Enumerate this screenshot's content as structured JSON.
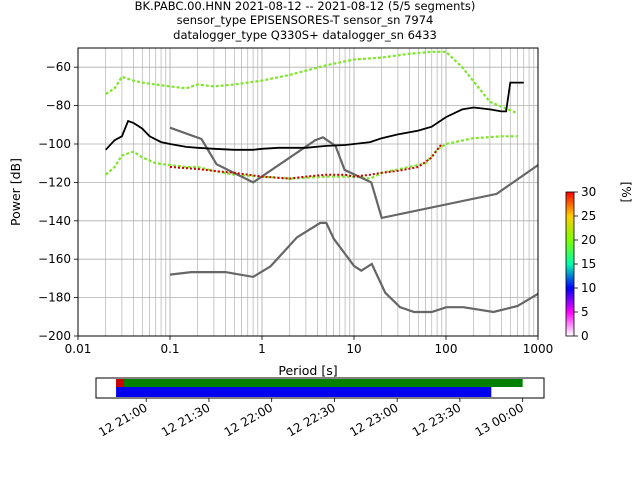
{
  "title": {
    "line1": "BK.PABC.00.HNN   2021-08-12 -- 2021-08-12  (5/5 segments)",
    "line2": "sensor_type EPISENSORES-T sensor_sn 7974",
    "line3": "datalogger_type Q330S+ datalogger_sn 6433"
  },
  "chart_data": [
    {
      "type": "line",
      "title": "BK.PABC.00.HNN   2021-08-12 -- 2021-08-12  (5/5 segments)",
      "xlabel": "Period [s]",
      "ylabel": "Power [dB]",
      "xscale": "log",
      "xlim": [
        0.01,
        1000
      ],
      "ylim": [
        -200,
        -50
      ],
      "xticks": [
        0.01,
        0.1,
        1,
        10,
        100,
        1000
      ],
      "xtick_labels": [
        "0.01",
        "0.1",
        "1",
        "10",
        "100",
        "1000"
      ],
      "yticks": [
        -200,
        -180,
        -160,
        -140,
        -120,
        -100,
        -80,
        -60
      ],
      "ytick_labels": [
        "−200",
        "−180",
        "−160",
        "−140",
        "−120",
        "−100",
        "−80",
        "−60"
      ],
      "grid": true,
      "colorbar": {
        "label": "[%]",
        "range": [
          0,
          30
        ],
        "ticks": [
          0,
          5,
          10,
          15,
          20,
          25,
          30
        ],
        "tick_labels": [
          "0",
          "5",
          "10",
          "15",
          "20",
          "25",
          "30"
        ],
        "colors": [
          "#ffffff",
          "#ff00ff",
          "#0000ff",
          "#00ffaa",
          "#7fff00",
          "#ffcc00",
          "#ff0000"
        ]
      },
      "series": [
        {
          "role": "mean",
          "color": "#000000",
          "x": [
            0.02,
            0.025,
            0.03,
            0.035,
            0.04,
            0.05,
            0.06,
            0.08,
            0.1,
            0.15,
            0.2,
            0.3,
            0.5,
            0.8,
            1,
            1.5,
            2,
            3,
            5,
            8,
            10,
            15,
            20,
            30,
            50,
            70,
            100,
            150,
            200,
            300,
            400,
            450,
            500,
            700
          ],
          "y": [
            -103,
            -98,
            -96,
            -88,
            -89,
            -92,
            -96,
            -99,
            -100,
            -101.5,
            -102,
            -102.5,
            -103,
            -103,
            -102.5,
            -102,
            -102,
            -102,
            -101,
            -100.5,
            -100,
            -99,
            -97,
            -95,
            -93,
            -91,
            -86,
            -82,
            -81,
            -82,
            -83,
            -83,
            -68,
            -68
          ]
        },
        {
          "role": "high-noise-model",
          "color": "#666666",
          "x": [
            0.1,
            0.22,
            0.32,
            0.8,
            3.8,
            4.6,
            6.3,
            7.9,
            15.4,
            20,
            354.8,
            1000
          ],
          "y": [
            -91.5,
            -97.4,
            -110.5,
            -120,
            -98,
            -96.5,
            -101,
            -113.5,
            -120,
            -138.5,
            -126,
            -111
          ]
        },
        {
          "role": "low-noise-model",
          "color": "#666666",
          "x": [
            0.1,
            0.17,
            0.4,
            0.8,
            1.24,
            2.4,
            4.3,
            5,
            6,
            10,
            12,
            15.6,
            21.9,
            31.6,
            45,
            70,
            101,
            154,
            328,
            600,
            1000
          ],
          "y": [
            -168,
            -166.7,
            -166.7,
            -169.2,
            -163.7,
            -148.6,
            -141.1,
            -141.1,
            -149.2,
            -163.5,
            -166,
            -162.5,
            -177.5,
            -185,
            -187.5,
            -187.5,
            -185,
            -185,
            -187.5,
            -184.4,
            -178
          ]
        },
        {
          "role": "probability-band-upper",
          "color": "#7fe62a",
          "x": [
            0.02,
            0.025,
            0.03,
            0.04,
            0.05,
            0.07,
            0.1,
            0.15,
            0.2,
            0.3,
            0.5,
            1,
            2,
            5,
            10,
            20,
            40,
            70,
            100,
            150,
            300,
            600
          ],
          "y": [
            -74,
            -71,
            -65,
            -67,
            -68,
            -69,
            -70,
            -71,
            -69,
            -70,
            -69,
            -67,
            -64,
            -59,
            -56,
            -55,
            -53,
            -52,
            -52,
            -60,
            -78,
            -84
          ]
        },
        {
          "role": "probability-band-lower",
          "color": "#7fe62a",
          "x": [
            0.02,
            0.025,
            0.03,
            0.04,
            0.05,
            0.07,
            0.1,
            0.15,
            0.2,
            0.3,
            0.5,
            1,
            2,
            5,
            10,
            15,
            20,
            40,
            60,
            80,
            100,
            200,
            400,
            600
          ],
          "y": [
            -116,
            -112,
            -106,
            -104,
            -107,
            -110,
            -111,
            -112,
            -112,
            -114,
            -116,
            -117,
            -118,
            -117,
            -117,
            -118,
            -115,
            -112,
            -110,
            -103,
            -100,
            -97,
            -96,
            -96
          ]
        },
        {
          "role": "mode",
          "color": "#cc0000",
          "x": [
            0.1,
            0.2,
            0.3,
            0.5,
            1,
            2,
            3,
            5,
            8,
            10,
            15,
            20,
            30,
            50,
            70,
            80,
            90
          ],
          "y": [
            -112,
            -113,
            -114,
            -115,
            -117,
            -118,
            -117,
            -116,
            -116,
            -117,
            -116,
            -115,
            -114,
            -112,
            -107,
            -103,
            -100
          ]
        }
      ]
    },
    {
      "type": "timeline",
      "tick_labels": [
        "12 21:00",
        "12 21:30",
        "12 22:00",
        "12 22:30",
        "12 23:00",
        "12 23:30",
        "13 00:00"
      ],
      "tick_hours": [
        21.0,
        21.5,
        22.0,
        22.5,
        23.0,
        23.5,
        24.0
      ],
      "xlim_hours": [
        20.6,
        24.17
      ],
      "bars": [
        {
          "role": "data-available",
          "color": "#008000",
          "start_hour": 20.76,
          "end_hour": 24.0
        },
        {
          "role": "gap",
          "color": "#cc0000",
          "start_hour": 20.76,
          "end_hour": 20.82
        },
        {
          "role": "psd-used",
          "color": "#0000ee",
          "start_hour": 20.76,
          "end_hour": 23.75
        }
      ]
    }
  ]
}
